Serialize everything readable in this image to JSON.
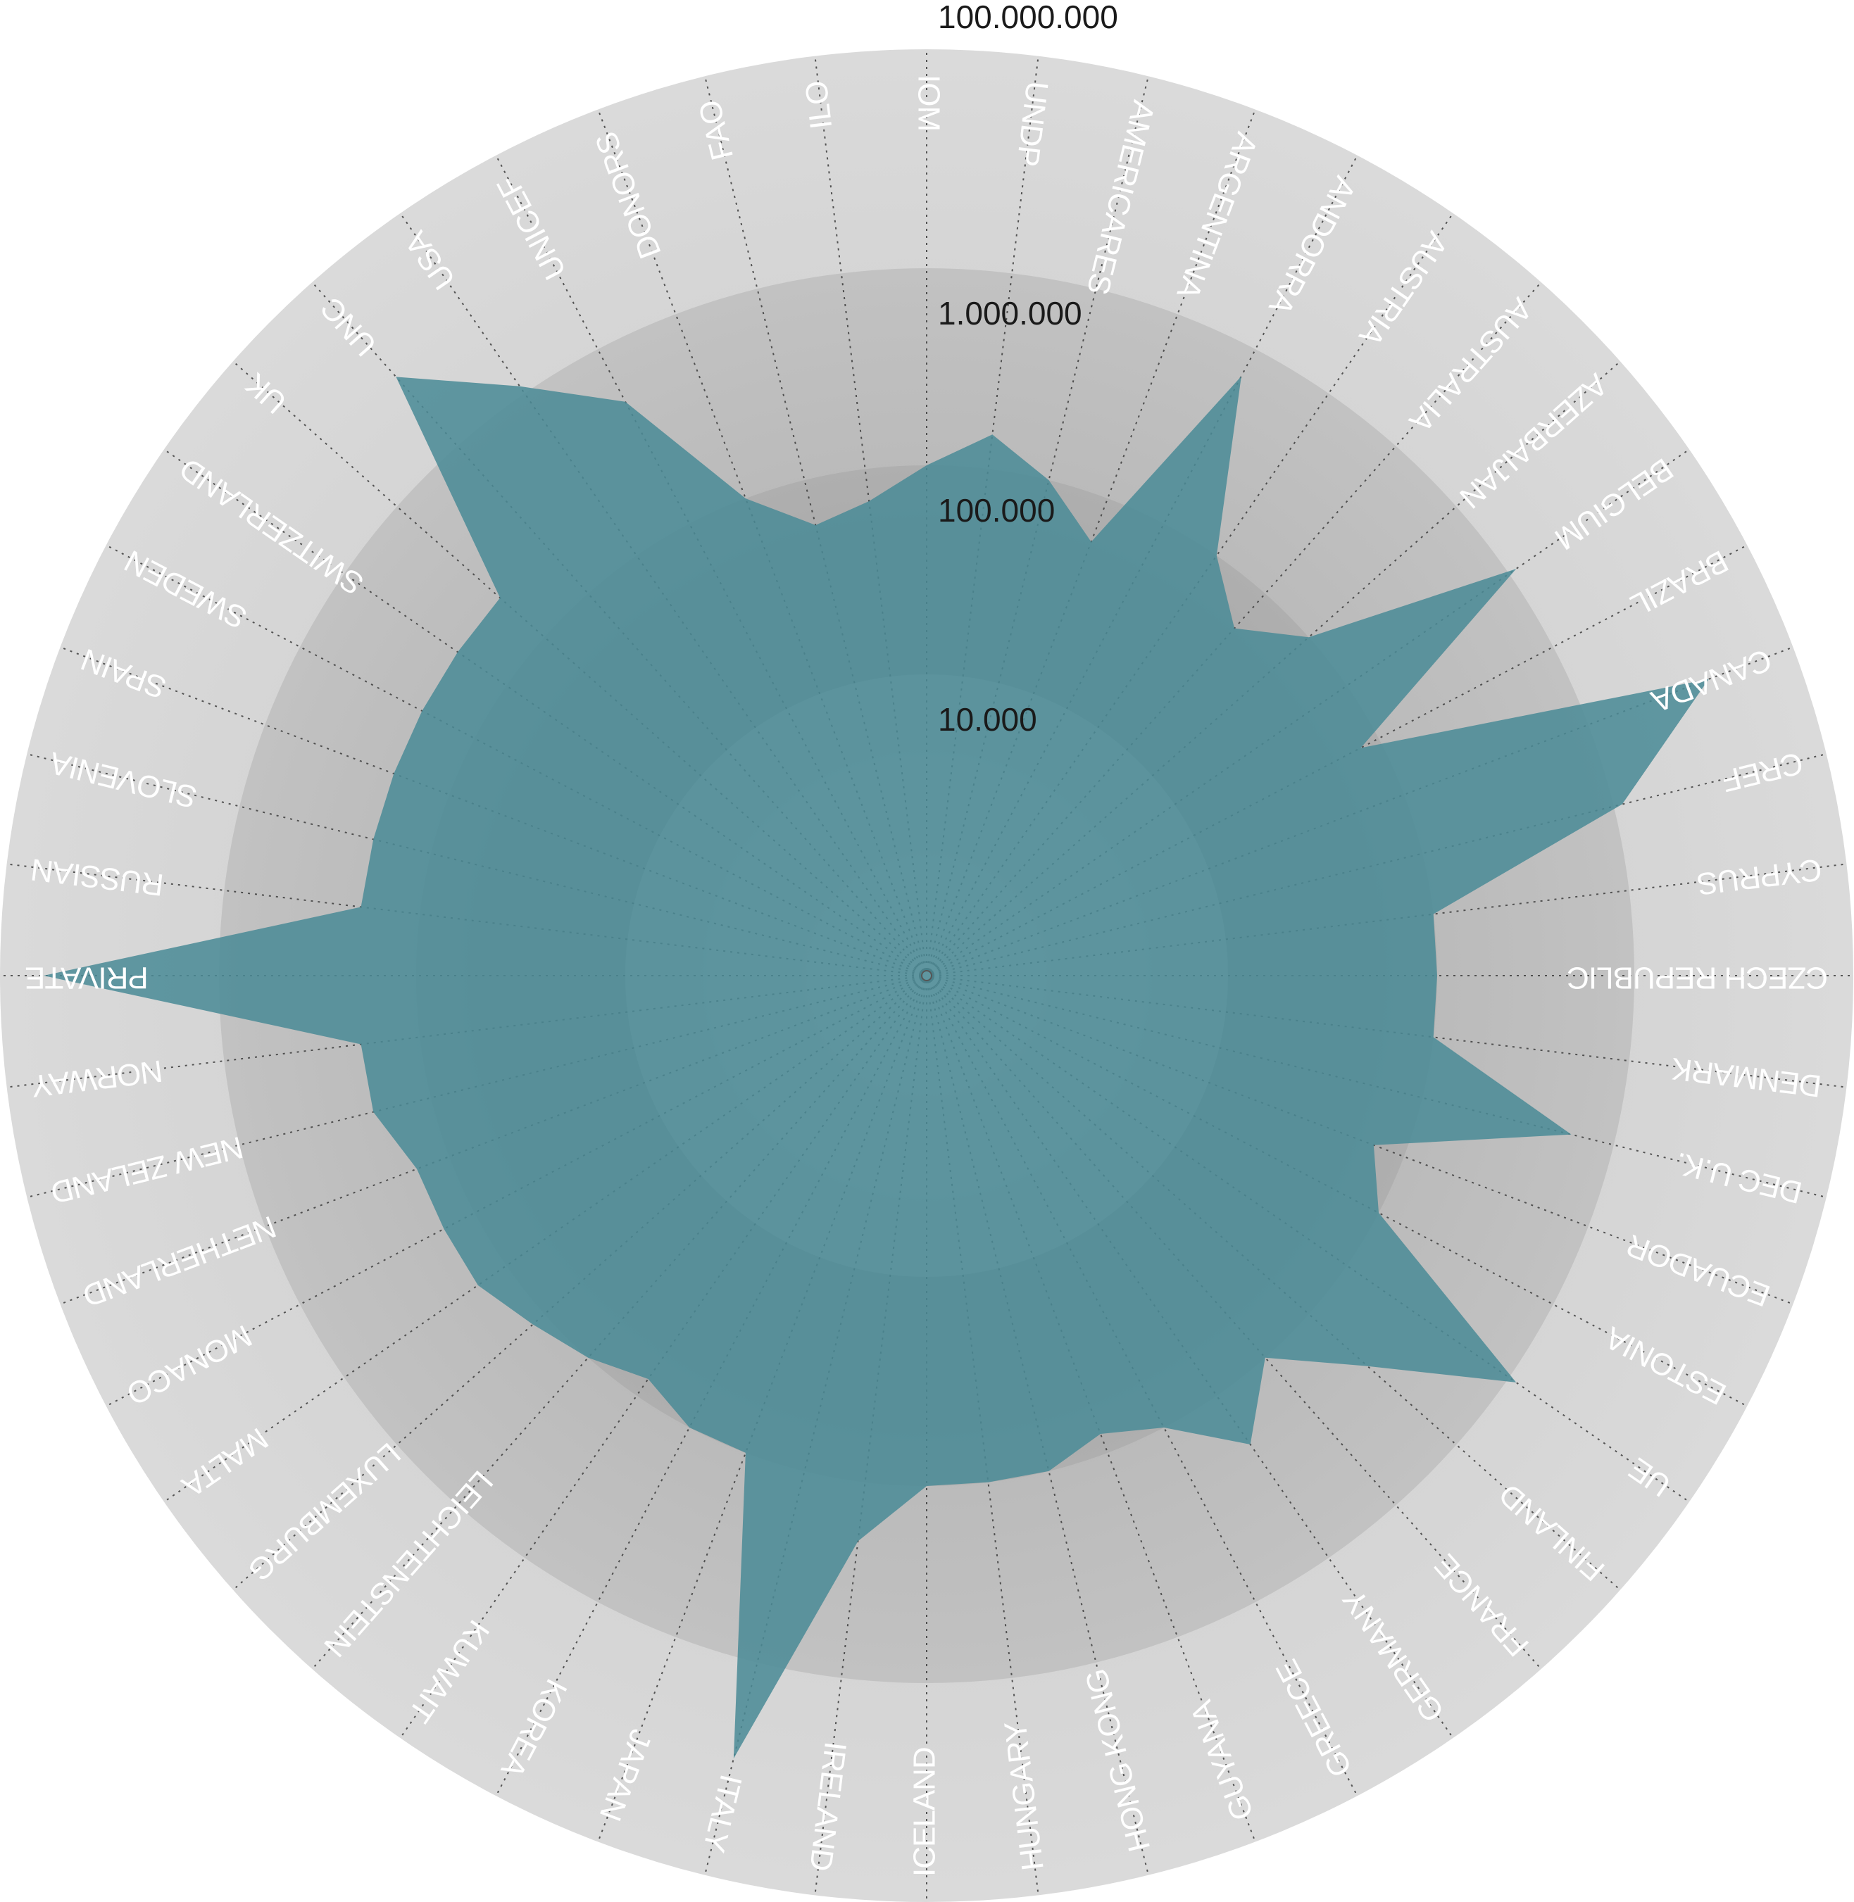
{
  "chart_data": {
    "type": "radar",
    "scale": "log",
    "rlim": [
      1,
      100000000
    ],
    "grid": true,
    "colors": {
      "series_fill": "#4a8a96",
      "band_outer": "#d4d4d4",
      "band_2": "#bdbdbd",
      "band_3": "#a9a9a9",
      "center": "#cdcdcd",
      "tick_text": "#1a1a1a",
      "label_text": "#ffffff"
    },
    "ticks": [
      {
        "value": 10000,
        "label": "10.000"
      },
      {
        "value": 100000,
        "label": "100.000"
      },
      {
        "value": 1000000,
        "label": "1.000.000"
      },
      {
        "value": 100000000,
        "label": "100.000.000"
      }
    ],
    "categories": [
      "IOM",
      "UNDP",
      "AMERICARES",
      "ARGENTINA",
      "ANDORRA",
      "AUSTRIA",
      "AUSTRALIA",
      "AZERBAIJAN",
      "BELGIUM",
      "BRAZIL",
      "CANADA",
      "CREF",
      "CYPRUS",
      "CZECH REPUBLIC",
      "DENMARK",
      "DEC U.K.",
      "ECUADOR",
      "ESTONIA",
      "UE",
      "FINLAND",
      "FRANCE",
      "GERMANY",
      "GREECE",
      "GUYANA",
      "HONG KONG",
      "HUNGARY",
      "ICELAND",
      "IRELAND",
      "ITALY",
      "JAPAN",
      "KOREA",
      "KUWAIT",
      "LEICHTENSTEIN",
      "LUXEMBURG",
      "MALTA",
      "MONACO",
      "NETHERLAND",
      "NEW ZELAND",
      "NORWAY",
      "PRIVATE",
      "RUSSIAN",
      "SLOVENIA",
      "SPAIN",
      "SWEDEN",
      "SWITZERLAND",
      "UK",
      "UNC",
      "USA",
      "UNICEF",
      "DONORS",
      "FAO",
      "ILO"
    ],
    "series": [
      {
        "values": [
          100000,
          150000,
          100000,
          60000,
          700000,
          100000,
          60000,
          100000,
          1200000,
          80000,
          15000000,
          1200000,
          100000,
          100000,
          100000,
          600000,
          70000,
          100000,
          1200000,
          250000,
          100000,
          200000,
          100000,
          80000,
          100000,
          100000,
          100000,
          200000,
          8000000,
          100000,
          100000,
          80000,
          100000,
          120000,
          150000,
          150000,
          150000,
          200000,
          200000,
          40000000,
          200000,
          200000,
          200000,
          200000,
          200000,
          200000,
          7000000,
          1200000,
          500000,
          100000,
          60000,
          70000
        ]
      }
    ]
  }
}
